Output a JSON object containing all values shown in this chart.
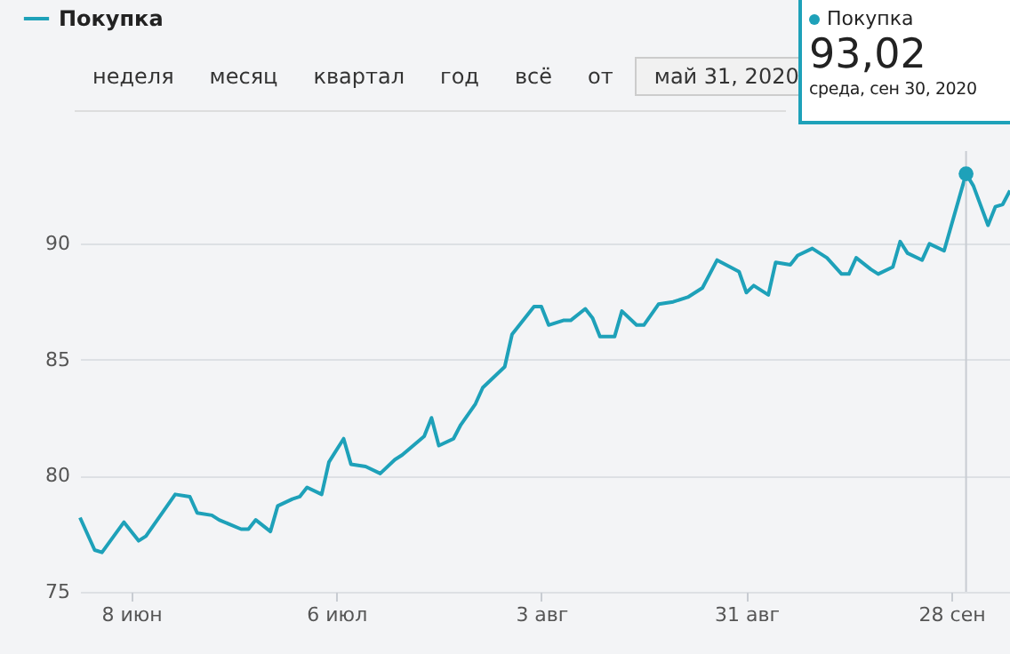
{
  "chart_data": {
    "type": "line",
    "x": [
      "2020-06-01",
      "2020-06-03",
      "2020-06-04",
      "2020-06-07",
      "2020-06-09",
      "2020-06-10",
      "2020-06-14",
      "2020-06-16",
      "2020-06-17",
      "2020-06-19",
      "2020-06-20",
      "2020-06-23",
      "2020-06-24",
      "2020-06-25",
      "2020-06-27",
      "2020-06-28",
      "2020-06-30",
      "2020-07-01",
      "2020-07-02",
      "2020-07-04",
      "2020-07-05",
      "2020-07-07",
      "2020-07-08",
      "2020-07-10",
      "2020-07-12",
      "2020-07-14",
      "2020-07-15",
      "2020-07-18",
      "2020-07-19",
      "2020-07-20",
      "2020-07-22",
      "2020-07-23",
      "2020-07-25",
      "2020-07-26",
      "2020-07-29",
      "2020-07-30",
      "2020-08-02",
      "2020-08-03",
      "2020-08-04",
      "2020-08-06",
      "2020-08-07",
      "2020-08-09",
      "2020-08-10",
      "2020-08-11",
      "2020-08-13",
      "2020-08-14",
      "2020-08-16",
      "2020-08-17",
      "2020-08-19",
      "2020-08-21",
      "2020-08-23",
      "2020-08-25",
      "2020-08-27",
      "2020-08-30",
      "2020-08-31",
      "2020-09-01",
      "2020-09-03",
      "2020-09-04",
      "2020-09-06",
      "2020-09-07",
      "2020-09-09",
      "2020-09-11",
      "2020-09-13",
      "2020-09-14",
      "2020-09-15",
      "2020-09-17",
      "2020-09-18",
      "2020-09-20",
      "2020-09-21",
      "2020-09-22",
      "2020-09-24",
      "2020-09-25",
      "2020-09-27",
      "2020-09-30",
      "2020-10-01",
      "2020-10-03",
      "2020-10-04",
      "2020-10-05",
      "2020-10-06"
    ],
    "series": [
      {
        "name": "Покупка",
        "color": "#1ea1b9",
        "values": [
          78.2,
          76.8,
          76.7,
          78.0,
          77.2,
          77.4,
          79.2,
          79.1,
          78.4,
          78.3,
          78.1,
          77.7,
          77.7,
          78.1,
          77.6,
          78.7,
          79.0,
          79.1,
          79.5,
          79.2,
          80.6,
          81.6,
          80.5,
          80.4,
          80.1,
          80.7,
          80.9,
          81.7,
          82.5,
          81.3,
          81.6,
          82.2,
          83.1,
          83.8,
          84.7,
          86.1,
          87.3,
          87.3,
          86.5,
          86.7,
          86.7,
          87.2,
          86.8,
          86.0,
          86.0,
          87.1,
          86.5,
          86.5,
          87.4,
          87.5,
          87.7,
          88.1,
          89.3,
          88.8,
          87.9,
          88.2,
          87.8,
          89.2,
          89.1,
          89.5,
          89.8,
          89.4,
          88.7,
          88.7,
          89.4,
          88.9,
          88.7,
          89.0,
          90.1,
          89.6,
          89.3,
          90.0,
          89.7,
          93.02,
          92.5,
          90.8,
          91.6,
          91.7,
          92.3
        ]
      }
    ],
    "xlim": [
      "2020-06-01",
      "2020-10-06"
    ],
    "xticks": [
      {
        "value": "2020-06-08",
        "label": "8 июн"
      },
      {
        "value": "2020-07-06",
        "label": "6 июл"
      },
      {
        "value": "2020-08-03",
        "label": "3 авг"
      },
      {
        "value": "2020-08-31",
        "label": "31 авг"
      },
      {
        "value": "2020-09-28",
        "label": "28 сен"
      }
    ],
    "ylim": [
      75,
      94
    ],
    "yticks": [
      75,
      80,
      85,
      90
    ],
    "grid": "y",
    "legend": "top left",
    "marker": "none",
    "line_style": "solid",
    "ref_lines": [
      {
        "axis": "x",
        "value": "2020-09-30",
        "color": "#c8ccd2"
      }
    ],
    "annotations": [
      "неделя",
      "месяц",
      "квартал",
      "год",
      "всё",
      "от",
      "май 31, 2020",
      {
        "text": "93,02",
        "x": "2020-09-30",
        "y": 93.02
      },
      "среда, сен 30, 2020"
    ]
  }
}
